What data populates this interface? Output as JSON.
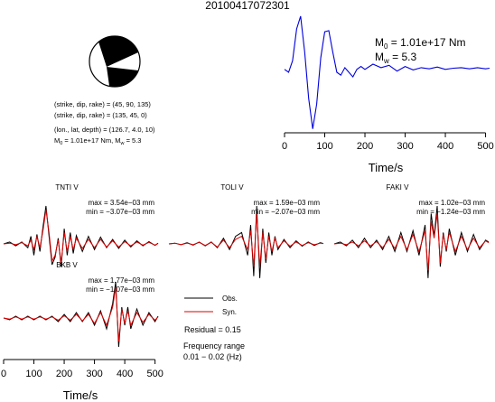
{
  "title": "20100417072301",
  "colors": {
    "observed": "#000000",
    "synthetic": "#dd0000",
    "stf": "#0000dd",
    "beachball": "#000000"
  },
  "source_info": {
    "fault_plane_1": "(strike, dip, rake) = (45, 90, 135)",
    "fault_plane_2": "(strike, dip, rake) = (135, 45, 0)",
    "location": "(lon., lat, depth) = (126.7, 4.0, 10)",
    "m0_prefix": "M",
    "m0_sub": "0",
    "m0_mid": " = 1.01e+17 Nm, M",
    "mw_sub": "w",
    "mw_tail": " = 5.3"
  },
  "stf_panel": {
    "m0_label": "M",
    "m0_sub": "0",
    "m0_value": " = 1.01e+17 Nm",
    "mw_label": "M",
    "mw_sub": "w",
    "mw_value": " = 5.3",
    "xlabel": "Time/s",
    "xticks": [
      "0",
      "100",
      "200",
      "300",
      "400",
      "500"
    ]
  },
  "bottom_axis": {
    "xlabel": "Time/s",
    "xticks": [
      "0",
      "100",
      "200",
      "300",
      "400",
      "500"
    ]
  },
  "stations": [
    {
      "name": "TNTI V",
      "max": "max = 3.54e−03 mm",
      "min": "min = −3.07e−03 mm"
    },
    {
      "name": "TOLI V",
      "max": "max = 1.59e−03 mm",
      "min": "min = −2.07e−03 mm"
    },
    {
      "name": "FAKI V",
      "max": "max = 1.02e−03 mm",
      "min": "min = −1.24e−03 mm"
    },
    {
      "name": "BKB V",
      "max": "max = 1.77e−03 mm",
      "min": "min = −1.07e−03 mm"
    }
  ],
  "legend": {
    "obs": "Obs.",
    "syn": "Syn.",
    "residual": "Residual = 0.15",
    "freq_line1": "Frequency range",
    "freq_line2": "0.01 − 0.02 (Hz)"
  },
  "chart_data": [
    {
      "type": "line",
      "title": "",
      "xlabel": "Time/s",
      "ylabel": "",
      "xlim": [
        0,
        510
      ],
      "series": [
        {
          "x": [
            0,
            10,
            20,
            30,
            40,
            50,
            60,
            70,
            80,
            90,
            100,
            110,
            120,
            130,
            140,
            150,
            160,
            170,
            180,
            190,
            200,
            220,
            240,
            260,
            280,
            300,
            320,
            340,
            360,
            380,
            400,
            420,
            440,
            460,
            480,
            500,
            510
          ],
          "y": [
            0.05,
            0.0,
            0.2,
            0.75,
            0.97,
            0.35,
            -0.45,
            -0.98,
            -0.55,
            0.25,
            0.7,
            0.72,
            0.35,
            0.0,
            -0.05,
            0.08,
            0.0,
            -0.08,
            0.05,
            0.1,
            0.05,
            0.14,
            0.08,
            0.12,
            0.02,
            0.1,
            0.04,
            0.08,
            0.06,
            0.09,
            0.05,
            0.07,
            0.08,
            0.06,
            0.08,
            0.06,
            0.07
          ]
        }
      ]
    },
    {
      "type": "line",
      "title": "TNTI V",
      "xlim": [
        0,
        510
      ],
      "series": [
        {
          "name": "Obs.",
          "x": [
            0,
            20,
            40,
            60,
            80,
            90,
            100,
            110,
            120,
            130,
            140,
            150,
            160,
            170,
            180,
            190,
            200,
            210,
            220,
            230,
            240,
            260,
            280,
            300,
            320,
            340,
            360,
            380,
            400,
            420,
            440,
            460,
            480,
            500,
            510
          ],
          "y": [
            0,
            0.05,
            -0.05,
            0.05,
            -0.1,
            0.2,
            -0.3,
            0.25,
            -0.2,
            0.45,
            1.0,
            0.2,
            -0.55,
            -0.35,
            0.15,
            -0.6,
            0.4,
            -0.3,
            0.3,
            -0.25,
            0.22,
            -0.2,
            0.2,
            -0.15,
            0.18,
            -0.1,
            0.12,
            -0.12,
            0.1,
            -0.08,
            0.08,
            -0.05,
            0.06,
            -0.04,
            0.02
          ]
        },
        {
          "name": "Syn.",
          "x": [
            0,
            20,
            40,
            60,
            80,
            90,
            100,
            110,
            120,
            130,
            140,
            150,
            160,
            170,
            180,
            190,
            200,
            210,
            220,
            230,
            240,
            260,
            280,
            300,
            320,
            340,
            360,
            380,
            400,
            420,
            440,
            460,
            480,
            500,
            510
          ],
          "y": [
            0,
            0.02,
            -0.02,
            0.03,
            -0.05,
            0.1,
            -0.15,
            0.2,
            -0.1,
            0.35,
            0.9,
            0.3,
            -0.45,
            -0.3,
            0.1,
            -0.5,
            0.3,
            -0.2,
            0.2,
            -0.15,
            0.15,
            -0.12,
            0.12,
            -0.1,
            0.12,
            -0.08,
            0.08,
            -0.08,
            0.06,
            -0.05,
            0.05,
            -0.03,
            0.04,
            -0.03,
            0.01
          ]
        }
      ]
    },
    {
      "type": "line",
      "title": "TOLI V",
      "xlim": [
        0,
        510
      ],
      "series": [
        {
          "name": "Obs.",
          "x": [
            0,
            20,
            40,
            60,
            80,
            100,
            120,
            140,
            160,
            180,
            200,
            220,
            240,
            260,
            270,
            280,
            290,
            300,
            310,
            320,
            330,
            340,
            350,
            360,
            380,
            400,
            420,
            440,
            460,
            480,
            500,
            510
          ],
          "y": [
            0,
            0.02,
            -0.02,
            0.03,
            -0.03,
            0.05,
            -0.05,
            0.05,
            -0.1,
            0.15,
            -0.15,
            0.2,
            0.3,
            -0.3,
            0.5,
            -0.85,
            1.0,
            -0.9,
            0.4,
            -0.5,
            0.3,
            -0.3,
            0.2,
            -0.15,
            0.12,
            -0.1,
            0.08,
            -0.06,
            0.05,
            -0.04,
            0.03,
            0.01
          ]
        },
        {
          "name": "Syn.",
          "x": [
            0,
            20,
            40,
            60,
            80,
            100,
            120,
            140,
            160,
            180,
            200,
            220,
            240,
            260,
            270,
            280,
            290,
            300,
            310,
            320,
            330,
            340,
            350,
            360,
            380,
            400,
            420,
            440,
            460,
            480,
            500,
            510
          ],
          "y": [
            0,
            0.02,
            -0.02,
            0.02,
            -0.02,
            0.04,
            -0.04,
            0.04,
            -0.08,
            0.1,
            -0.1,
            0.12,
            0.2,
            -0.15,
            0.35,
            -0.6,
            0.8,
            -0.6,
            0.3,
            -0.4,
            0.2,
            -0.2,
            0.15,
            -0.1,
            0.08,
            -0.06,
            0.05,
            -0.04,
            0.03,
            -0.02,
            0.02,
            0.01
          ]
        }
      ]
    },
    {
      "type": "line",
      "title": "FAKI V",
      "xlim": [
        0,
        510
      ],
      "series": [
        {
          "name": "Obs.",
          "x": [
            0,
            20,
            40,
            60,
            80,
            100,
            120,
            140,
            160,
            180,
            200,
            220,
            240,
            260,
            280,
            300,
            310,
            320,
            330,
            340,
            350,
            360,
            370,
            380,
            400,
            420,
            440,
            460,
            480,
            500,
            510
          ],
          "y": [
            0,
            0.05,
            -0.05,
            0.1,
            -0.1,
            0.15,
            -0.1,
            0.1,
            -0.15,
            0.2,
            -0.2,
            0.3,
            -0.2,
            0.35,
            -0.3,
            0.5,
            -0.9,
            0.8,
            0.2,
            1.0,
            -0.6,
            0.3,
            -0.2,
            0.4,
            -0.3,
            0.3,
            -0.2,
            0.25,
            -0.15,
            0.1,
            0.05
          ]
        },
        {
          "name": "Syn.",
          "x": [
            0,
            20,
            40,
            60,
            80,
            100,
            120,
            140,
            160,
            180,
            200,
            220,
            240,
            260,
            280,
            300,
            310,
            320,
            330,
            340,
            350,
            360,
            370,
            380,
            400,
            420,
            440,
            460,
            480,
            500,
            510
          ],
          "y": [
            0,
            0.02,
            -0.02,
            0.05,
            -0.05,
            0.08,
            -0.05,
            0.06,
            -0.1,
            0.12,
            -0.12,
            0.2,
            -0.15,
            0.25,
            -0.2,
            0.35,
            -0.7,
            0.6,
            0.15,
            0.8,
            -0.5,
            0.25,
            -0.15,
            0.3,
            -0.2,
            0.2,
            -0.15,
            0.15,
            -0.1,
            0.08,
            0.03
          ]
        }
      ]
    },
    {
      "type": "line",
      "title": "BKB V",
      "xlim": [
        0,
        510
      ],
      "series": [
        {
          "name": "Obs.",
          "x": [
            0,
            20,
            40,
            60,
            80,
            100,
            120,
            140,
            160,
            180,
            200,
            220,
            240,
            260,
            280,
            300,
            320,
            340,
            360,
            370,
            380,
            390,
            400,
            410,
            420,
            440,
            460,
            480,
            500,
            510
          ],
          "y": [
            0,
            -0.05,
            0.05,
            -0.05,
            0.05,
            -0.05,
            0.05,
            -0.05,
            0.05,
            -0.1,
            0.1,
            -0.1,
            0.15,
            -0.1,
            0.15,
            -0.2,
            0.2,
            -0.3,
            0.4,
            1.0,
            -0.8,
            0.3,
            -0.2,
            0.3,
            -0.3,
            0.25,
            -0.2,
            0.15,
            -0.1,
            0.05
          ]
        },
        {
          "name": "Syn.",
          "x": [
            0,
            20,
            40,
            60,
            80,
            100,
            120,
            140,
            160,
            180,
            200,
            220,
            240,
            260,
            280,
            300,
            320,
            340,
            360,
            370,
            380,
            390,
            400,
            410,
            420,
            440,
            460,
            480,
            500,
            510
          ],
          "y": [
            0,
            -0.03,
            0.03,
            -0.03,
            0.03,
            -0.03,
            0.03,
            -0.03,
            0.03,
            -0.06,
            0.06,
            -0.06,
            0.1,
            -0.08,
            0.1,
            -0.15,
            0.15,
            -0.2,
            0.3,
            0.85,
            -0.65,
            0.25,
            -0.15,
            0.2,
            -0.2,
            0.15,
            -0.12,
            0.1,
            -0.06,
            0.03
          ]
        }
      ]
    }
  ]
}
